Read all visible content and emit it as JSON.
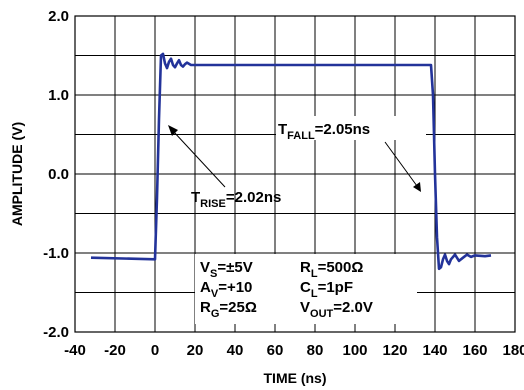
{
  "chart_data": {
    "type": "line",
    "xlabel": "TIME  (ns)",
    "ylabel": "AMPLITUDE (V)",
    "xlim": [
      -40,
      180
    ],
    "ylim": [
      -2.0,
      2.0
    ],
    "x_ticks": [
      "-40",
      "-20",
      "0",
      "20",
      "40",
      "60",
      "80",
      "100",
      "120",
      "140",
      "160",
      "180"
    ],
    "y_ticks": [
      "2.0",
      "1.0",
      "0.0",
      "-1.0",
      "-2.0"
    ],
    "grid": true,
    "line_color": "#23339a",
    "series": [
      {
        "x": [
          -32,
          0,
          1,
          2,
          3,
          4,
          5,
          6,
          7,
          8,
          9,
          10,
          11,
          12,
          13,
          14,
          15,
          16,
          18,
          20,
          40,
          60,
          80,
          100,
          120,
          138,
          139,
          140,
          141,
          142,
          143,
          144,
          145,
          146,
          147,
          148,
          150,
          152,
          154,
          156,
          158,
          160,
          165,
          168
        ],
        "y": [
          -1.06,
          -1.08,
          -0.3,
          0.7,
          1.5,
          1.52,
          1.4,
          1.34,
          1.42,
          1.46,
          1.38,
          1.35,
          1.4,
          1.44,
          1.38,
          1.36,
          1.39,
          1.41,
          1.38,
          1.38,
          1.38,
          1.38,
          1.38,
          1.38,
          1.38,
          1.38,
          1.0,
          0.0,
          -0.8,
          -1.2,
          -1.18,
          -1.08,
          -1.02,
          -1.1,
          -1.14,
          -1.08,
          -1.02,
          -1.1,
          -1.06,
          -1.02,
          -1.05,
          -1.03,
          -1.04,
          -1.03
        ]
      }
    ],
    "annotations": {
      "rise": {
        "main": "T",
        "sub": "RISE",
        "value": "=2.02ns"
      },
      "fall": {
        "main": "T",
        "sub": "FALL",
        "value": "=2.05ns"
      },
      "conditions": [
        {
          "main": "V",
          "sub": "S",
          "value": "=±5V"
        },
        {
          "main": "R",
          "sub": "L",
          "value": "=500Ω"
        },
        {
          "main": "A",
          "sub": "V",
          "value": "=+10"
        },
        {
          "main": "C",
          "sub": "L",
          "value": "=1pF"
        },
        {
          "main": "R",
          "sub": "G",
          "value": "=25Ω"
        },
        {
          "main": "V",
          "sub": "OUT",
          "value": "=2.0V"
        }
      ]
    }
  }
}
